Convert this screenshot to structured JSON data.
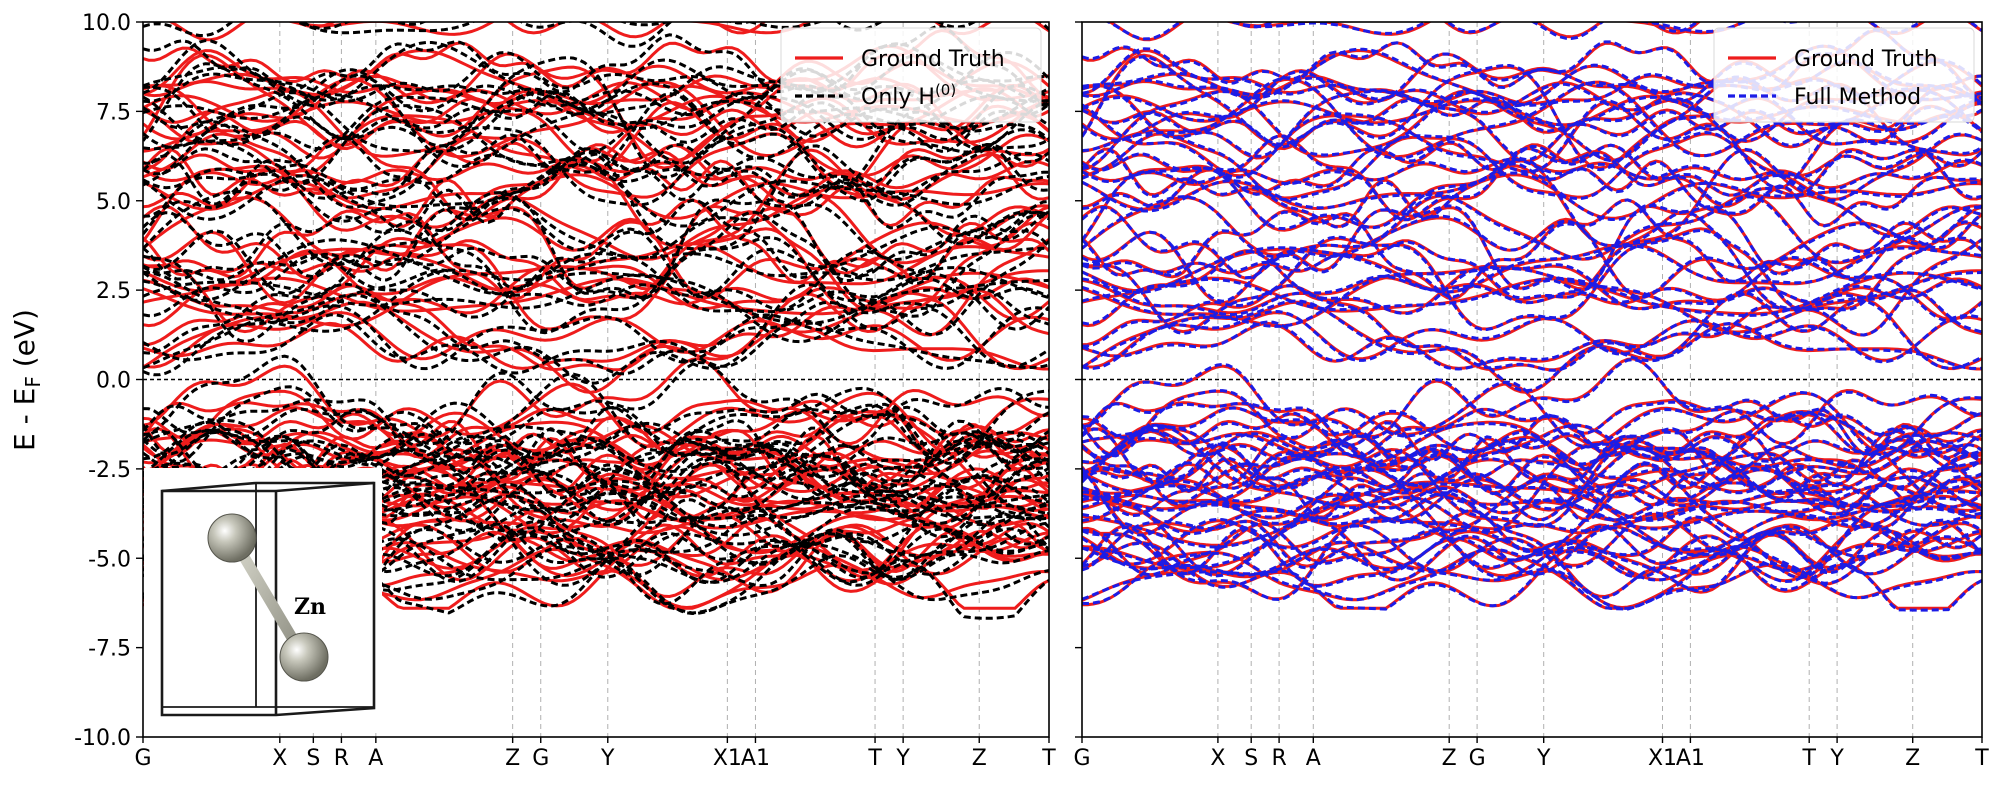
{
  "chart_data": {
    "type": "line",
    "ylabel": {
      "main": "E - E",
      "sub": "F",
      "unit": " (eV)"
    },
    "ylim": [
      -10,
      10
    ],
    "yticks": [
      {
        "v": 10,
        "label": "10.0"
      },
      {
        "v": 7.5,
        "label": "7.5"
      },
      {
        "v": 5,
        "label": "5.0"
      },
      {
        "v": 2.5,
        "label": "2.5"
      },
      {
        "v": 0,
        "label": "0.0"
      },
      {
        "v": -2.5,
        "label": "-2.5"
      },
      {
        "v": -5,
        "label": "-5.0"
      },
      {
        "v": -7.5,
        "label": "-7.5"
      },
      {
        "v": -10,
        "label": "-10.0"
      }
    ],
    "kpath_fractions": [
      0,
      0.151,
      0.188,
      0.219,
      0.257,
      0.408,
      0.439,
      0.513,
      0.645,
      0.676,
      0.808,
      0.839,
      0.923,
      1.0
    ],
    "kpath_labels": [
      "G",
      "X",
      "S",
      "R",
      "A",
      "Z",
      "G",
      "Y",
      "X1",
      "A1",
      "T",
      "Y",
      "Z",
      "T"
    ],
    "fermi_level": 0.0,
    "grid": "vertical dashed lines at high-symmetry k-points",
    "inset": {
      "atom_label": "Zn",
      "panel": 0
    },
    "panels": [
      {
        "legend_position": "top-right",
        "series": [
          {
            "name": "Ground Truth",
            "color": "#ee1c1c",
            "style": "solid"
          },
          {
            "name": "Only H",
            "name_sup": "(0)",
            "color": "#000000",
            "style": "dashed"
          }
        ]
      },
      {
        "legend_position": "top-right",
        "series": [
          {
            "name": "Ground Truth",
            "color": "#ee1c1c",
            "style": "solid"
          },
          {
            "name": "Full Method",
            "color": "#1c1ce6",
            "style": "dashed"
          }
        ]
      }
    ]
  },
  "colors": {
    "ground_truth": "#ee1c1c",
    "only_h0": "#000000",
    "full_method": "#1c1ce6",
    "grid": "#b0b0b0"
  }
}
